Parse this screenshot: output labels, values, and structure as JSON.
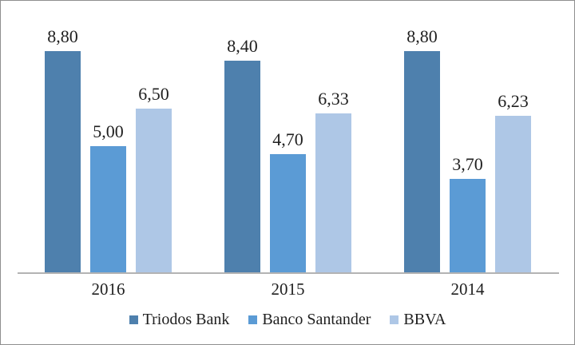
{
  "chart_data": {
    "type": "bar",
    "title": "",
    "xlabel": "",
    "ylabel": "",
    "categories": [
      "2016",
      "2015",
      "2014"
    ],
    "series": [
      {
        "name": "Triodos Bank",
        "color": "#4E80AD",
        "values": [
          8.8,
          8.4,
          8.8
        ],
        "value_labels": [
          "8,80",
          "8,40",
          "8,80"
        ]
      },
      {
        "name": "Banco Santander",
        "color": "#5B9BD5",
        "values": [
          5.0,
          4.7,
          3.7
        ],
        "value_labels": [
          "5,00",
          "4,70",
          "3,70"
        ]
      },
      {
        "name": "BBVA",
        "color": "#AEC7E6",
        "values": [
          6.5,
          6.33,
          6.23
        ],
        "value_labels": [
          "6,50",
          "6,33",
          "6,23"
        ]
      }
    ],
    "ylim": [
      0,
      10
    ],
    "grid": false,
    "legend_position": "bottom",
    "value_format": "comma-decimal",
    "axis_line_color": "#b3b3b3",
    "text_color": "#1f1f1f"
  }
}
